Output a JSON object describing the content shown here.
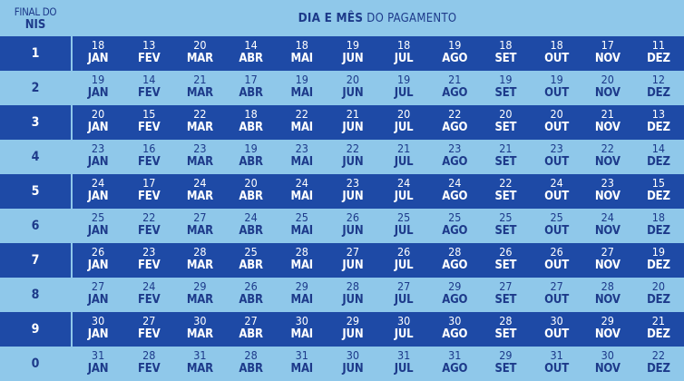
{
  "header": {
    "nis_line1": "FINAL DO",
    "nis_line2": "NIS",
    "title_bold": "DIA E MÊS",
    "title_rest": " DO PAGAMENTO"
  },
  "months": [
    "JAN",
    "FEV",
    "MAR",
    "ABR",
    "MAI",
    "JUN",
    "JUL",
    "AGO",
    "SET",
    "OUT",
    "NOV",
    "DEZ"
  ],
  "rows": [
    {
      "nis": "1",
      "days": [
        "18",
        "13",
        "20",
        "14",
        "18",
        "19",
        "18",
        "19",
        "18",
        "18",
        "17",
        "11"
      ]
    },
    {
      "nis": "2",
      "days": [
        "19",
        "14",
        "21",
        "17",
        "19",
        "20",
        "19",
        "21",
        "19",
        "19",
        "20",
        "12"
      ]
    },
    {
      "nis": "3",
      "days": [
        "20",
        "15",
        "22",
        "18",
        "22",
        "21",
        "20",
        "22",
        "20",
        "20",
        "21",
        "13"
      ]
    },
    {
      "nis": "4",
      "days": [
        "23",
        "16",
        "23",
        "19",
        "23",
        "22",
        "21",
        "23",
        "21",
        "23",
        "22",
        "14"
      ]
    },
    {
      "nis": "5",
      "days": [
        "24",
        "17",
        "24",
        "20",
        "24",
        "23",
        "24",
        "24",
        "22",
        "24",
        "23",
        "15"
      ]
    },
    {
      "nis": "6",
      "days": [
        "25",
        "22",
        "27",
        "24",
        "25",
        "26",
        "25",
        "25",
        "25",
        "25",
        "24",
        "18"
      ]
    },
    {
      "nis": "7",
      "days": [
        "26",
        "23",
        "28",
        "25",
        "28",
        "27",
        "26",
        "28",
        "26",
        "26",
        "27",
        "19"
      ]
    },
    {
      "nis": "8",
      "days": [
        "27",
        "24",
        "29",
        "26",
        "29",
        "28",
        "27",
        "29",
        "27",
        "27",
        "28",
        "20"
      ]
    },
    {
      "nis": "9",
      "days": [
        "30",
        "27",
        "30",
        "27",
        "30",
        "29",
        "30",
        "30",
        "28",
        "30",
        "29",
        "21"
      ]
    },
    {
      "nis": "0",
      "days": [
        "31",
        "28",
        "31",
        "28",
        "31",
        "30",
        "31",
        "31",
        "29",
        "31",
        "30",
        "22"
      ]
    }
  ],
  "colors": {
    "dark_row": "#1e4aa6",
    "light_row": "#8fc8ea",
    "dark_text": "#1d3a8a",
    "light_text": "#ffffff"
  }
}
